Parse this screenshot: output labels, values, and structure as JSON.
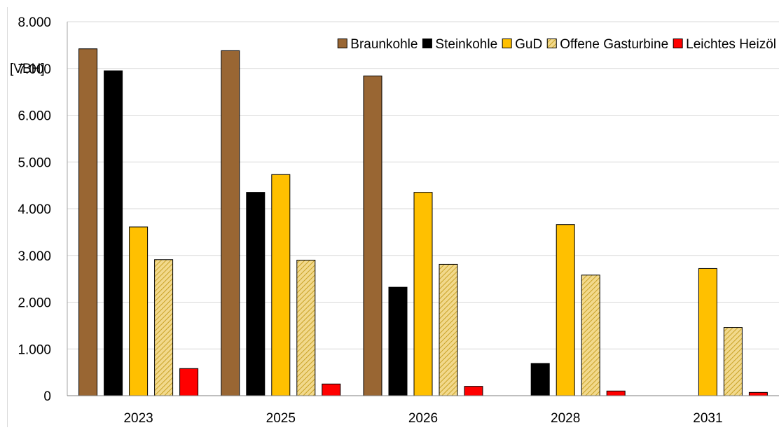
{
  "chart_data": {
    "type": "bar",
    "title": "",
    "xlabel": "",
    "ylabel": "",
    "unit_label": "[VBH]",
    "categories": [
      "2023",
      "2025",
      "2026",
      "2028",
      "2031"
    ],
    "ylim": [
      0,
      8000
    ],
    "yticks": [
      0,
      1000,
      2000,
      3000,
      4000,
      5000,
      6000,
      7000,
      8000
    ],
    "ytick_labels": [
      "0",
      "1.000",
      "2.000",
      "3.000",
      "4.000",
      "5.000",
      "6.000",
      "7.000",
      "8.000"
    ],
    "grid": true,
    "legend_position": "top-right",
    "series": [
      {
        "name": "Braunkohle",
        "color": "#996633",
        "pattern": "solid",
        "values": [
          7420,
          7380,
          6840,
          0,
          0
        ]
      },
      {
        "name": "Steinkohle",
        "color": "#000000",
        "pattern": "solid",
        "values": [
          6950,
          4350,
          2320,
          690,
          0
        ]
      },
      {
        "name": "GuD",
        "color": "#FFC000",
        "pattern": "solid",
        "values": [
          3610,
          4730,
          4350,
          3660,
          2720
        ]
      },
      {
        "name": "Offene Gasturbine",
        "color": "#F2D98C",
        "pattern": "hatched",
        "values": [
          2910,
          2900,
          2810,
          2580,
          1460
        ]
      },
      {
        "name": "Leichtes Heizöl",
        "color": "#FF0000",
        "pattern": "solid",
        "values": [
          580,
          250,
          200,
          100,
          70
        ]
      }
    ]
  }
}
